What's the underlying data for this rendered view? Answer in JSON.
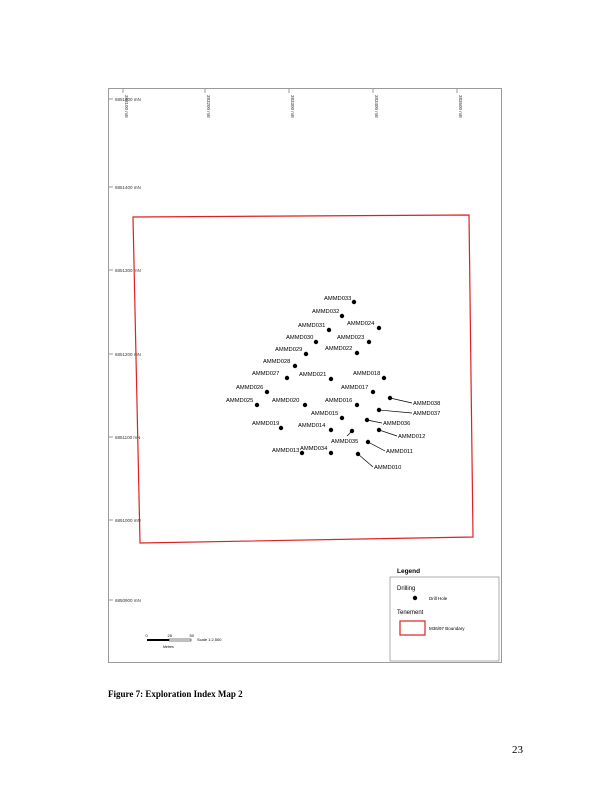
{
  "map": {
    "grid_north_labels": [
      "6851400 mN",
      "6851400 mN",
      "6851300 mN",
      "6851200 mN",
      "6851100 mN",
      "6851000 mN",
      "6850900 mN"
    ],
    "grid_east_labels": [
      "383100 mE",
      "383200 mE",
      "383300 mE",
      "383400 mE",
      "383500 mE"
    ],
    "drill_holes": [
      {
        "id": "AMMD033"
      },
      {
        "id": "AMMD032"
      },
      {
        "id": "AMMD031"
      },
      {
        "id": "AMMD024"
      },
      {
        "id": "AMMD030"
      },
      {
        "id": "AMMD023"
      },
      {
        "id": "AMMD029"
      },
      {
        "id": "AMMD022"
      },
      {
        "id": "AMMD028"
      },
      {
        "id": "AMMD027"
      },
      {
        "id": "AMMD021"
      },
      {
        "id": "AMMD018"
      },
      {
        "id": "AMMD026"
      },
      {
        "id": "AMMD017"
      },
      {
        "id": "AMMD025"
      },
      {
        "id": "AMMD020"
      },
      {
        "id": "AMMD016"
      },
      {
        "id": "AMMD038"
      },
      {
        "id": "AMMD015"
      },
      {
        "id": "AMMD037"
      },
      {
        "id": "AMMD019"
      },
      {
        "id": "AMMD014"
      },
      {
        "id": "AMMD036"
      },
      {
        "id": "AMMD012"
      },
      {
        "id": "AMMD035"
      },
      {
        "id": "AMMD013"
      },
      {
        "id": "AMMD034"
      },
      {
        "id": "AMMD011"
      },
      {
        "id": "AMMD010"
      }
    ],
    "scale_bar": {
      "ticks": [
        "0",
        "25",
        "50"
      ],
      "unit": "Metres",
      "ratio": "Scale 1:2,500"
    },
    "colors": {
      "boundary": "#e02020",
      "hole": "#000000",
      "frame": "#9a9a9a"
    },
    "legend": {
      "title": "Legend",
      "drilling_heading": "Drilling",
      "drill_hole_label": "Drill Hole",
      "tenement_heading": "Tenement",
      "boundary_label": "M36/97 Boundary",
      "drill_hole_icon": "drill-hole-icon",
      "boundary_icon": "tenement-boundary-icon"
    }
  },
  "caption": "Figure 7: Exploration Index Map 2",
  "page_number": "23"
}
